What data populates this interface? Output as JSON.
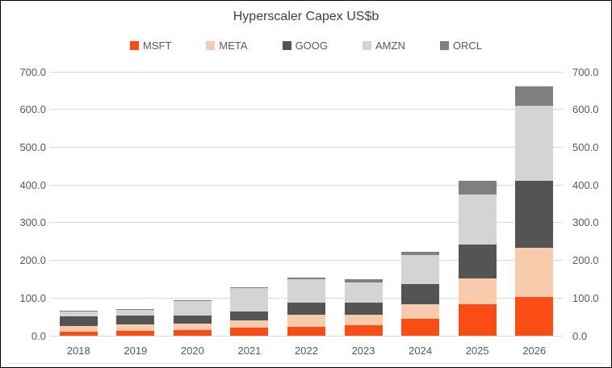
{
  "chart_data": {
    "type": "bar",
    "stacked": true,
    "title": "Hyperscaler Capex US$b",
    "categories": [
      "2018",
      "2019",
      "2020",
      "2021",
      "2022",
      "2023",
      "2024",
      "2025",
      "2026"
    ],
    "series": [
      {
        "name": "MSFT",
        "color": "#F94D15",
        "values": [
          11.6,
          13.9,
          15.4,
          20.6,
          23.9,
          28.1,
          44.5,
          83.0,
          103.0
        ]
      },
      {
        "name": "META",
        "color": "#F8CBAD",
        "values": [
          13.9,
          15.1,
          15.7,
          19.2,
          31.4,
          28.1,
          39.2,
          70.0,
          130.0
        ]
      },
      {
        "name": "GOOG",
        "color": "#545454",
        "values": [
          25.1,
          23.5,
          22.3,
          24.6,
          31.5,
          32.3,
          52.5,
          88.0,
          178.0
        ]
      },
      {
        "name": "AMZN",
        "color": "#D4D4D4",
        "values": [
          13.4,
          16.9,
          40.1,
          61.1,
          63.6,
          52.7,
          78.0,
          133.0,
          200.0
        ]
      },
      {
        "name": "ORCL",
        "color": "#7F7F7F",
        "values": [
          1.7,
          1.7,
          1.6,
          2.1,
          4.5,
          8.7,
          8.0,
          38.0,
          50.0
        ]
      }
    ],
    "xlabel": "",
    "ylabel": "",
    "ylim": [
      0,
      700
    ],
    "y_ticks": [
      "0.0",
      "100.0",
      "200.0",
      "300.0",
      "400.0",
      "500.0",
      "600.0",
      "700.0"
    ],
    "grid": true,
    "y_axis_sides": "both",
    "legend_position": "top",
    "colors": {
      "gridline": "#D9D9D9",
      "axis_label": "#595959",
      "title": "#404040",
      "background": "#FFFFFF",
      "border": "#000000"
    }
  }
}
